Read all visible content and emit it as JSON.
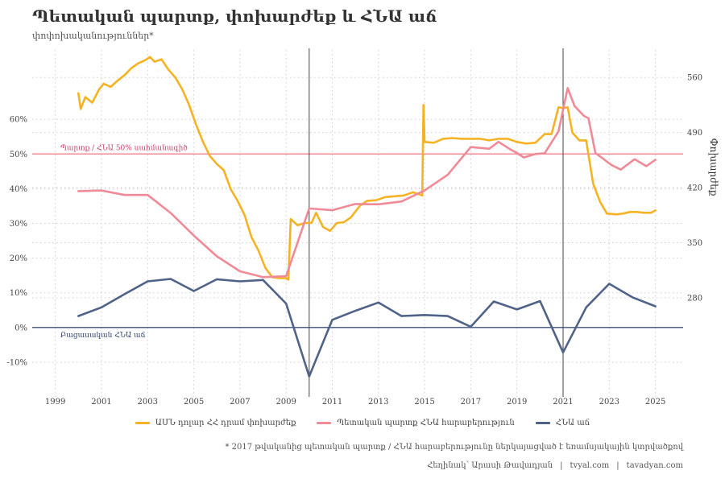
{
  "chart_data": {
    "type": "line",
    "title": "Պետական պարտք, փոխարժեք և ՀՆԱ աճ",
    "subtitle": "փոփոխականություններ*",
    "x_ticks": [
      1999,
      2001,
      2003,
      2005,
      2007,
      2009,
      2011,
      2013,
      2015,
      2017,
      2019,
      2021,
      2023,
      2025
    ],
    "xlim": [
      1998,
      2026.2
    ],
    "y_left": {
      "ticks": [
        "-10%",
        "0%",
        "10%",
        "20%",
        "30%",
        "40%",
        "50%",
        "60%"
      ],
      "range": [
        -20,
        80
      ]
    },
    "y_right": {
      "label": "Փոխարժեք",
      "ticks": [
        "280",
        "350",
        "420",
        "490",
        "560"
      ],
      "values": [
        280,
        350,
        420,
        490,
        560
      ],
      "range": [
        154,
        595
      ]
    },
    "reference_lines": [
      {
        "value": 50,
        "label": "Պարտք / ՀՆԱ 50% սահմանագիծ",
        "color": "#f08a96"
      },
      {
        "value": 0,
        "label": "Բացասական ՀՆԱ աճ",
        "color": "#3d4f7c"
      }
    ],
    "vertical_lines": [
      2010,
      2021
    ],
    "series": [
      {
        "name": "ԱՄՆ դոլար ՀՀ դրամ փոխարժեք",
        "axis": "right",
        "color": "#f5b324",
        "points": [
          [
            2000.0,
            540
          ],
          [
            2000.1,
            520
          ],
          [
            2000.3,
            535
          ],
          [
            2000.6,
            528
          ],
          [
            2000.9,
            545
          ],
          [
            2001.1,
            552
          ],
          [
            2001.4,
            548
          ],
          [
            2001.7,
            556
          ],
          [
            2002.0,
            563
          ],
          [
            2002.3,
            572
          ],
          [
            2002.6,
            578
          ],
          [
            2002.9,
            582
          ],
          [
            2003.1,
            586
          ],
          [
            2003.3,
            580
          ],
          [
            2003.6,
            583
          ],
          [
            2003.9,
            570
          ],
          [
            2004.2,
            560
          ],
          [
            2004.5,
            545
          ],
          [
            2004.8,
            525
          ],
          [
            2005.1,
            500
          ],
          [
            2005.4,
            478
          ],
          [
            2005.7,
            460
          ],
          [
            2006.0,
            450
          ],
          [
            2006.3,
            442
          ],
          [
            2006.6,
            418
          ],
          [
            2006.9,
            403
          ],
          [
            2007.2,
            385
          ],
          [
            2007.5,
            357
          ],
          [
            2007.8,
            340
          ],
          [
            2008.1,
            318
          ],
          [
            2008.4,
            306
          ],
          [
            2008.7,
            305
          ],
          [
            2009.0,
            305
          ],
          [
            2009.1,
            303
          ],
          [
            2009.2,
            380
          ],
          [
            2009.5,
            372
          ],
          [
            2009.8,
            375
          ],
          [
            2010.1,
            375
          ],
          [
            2010.3,
            388
          ],
          [
            2010.6,
            370
          ],
          [
            2010.9,
            365
          ],
          [
            2011.2,
            375
          ],
          [
            2011.5,
            376
          ],
          [
            2011.8,
            382
          ],
          [
            2012.2,
            397
          ],
          [
            2012.5,
            403
          ],
          [
            2012.9,
            404
          ],
          [
            2013.3,
            408
          ],
          [
            2013.7,
            409
          ],
          [
            2014.1,
            410
          ],
          [
            2014.5,
            414
          ],
          [
            2014.9,
            410
          ],
          [
            2014.95,
            525
          ],
          [
            2015.0,
            478
          ],
          [
            2015.4,
            477
          ],
          [
            2015.8,
            482
          ],
          [
            2016.2,
            483
          ],
          [
            2016.6,
            482
          ],
          [
            2017.0,
            482
          ],
          [
            2017.4,
            482
          ],
          [
            2017.8,
            480
          ],
          [
            2018.2,
            482
          ],
          [
            2018.6,
            482
          ],
          [
            2019.0,
            478
          ],
          [
            2019.4,
            476
          ],
          [
            2019.8,
            477
          ],
          [
            2020.2,
            488
          ],
          [
            2020.5,
            488
          ],
          [
            2020.8,
            522
          ],
          [
            2021.0,
            521
          ],
          [
            2021.2,
            522
          ],
          [
            2021.4,
            490
          ],
          [
            2021.7,
            480
          ],
          [
            2022.0,
            480
          ],
          [
            2022.3,
            425
          ],
          [
            2022.6,
            402
          ],
          [
            2022.9,
            387
          ],
          [
            2023.3,
            386
          ],
          [
            2023.6,
            387
          ],
          [
            2023.9,
            389
          ],
          [
            2024.2,
            389
          ],
          [
            2024.5,
            388
          ],
          [
            2024.8,
            388
          ],
          [
            2025.0,
            391
          ]
        ]
      },
      {
        "name": "Պետական պարտք ՀՆԱ հարաբերություն",
        "axis": "left",
        "color": "#f08a96",
        "points": [
          [
            2000,
            39.3
          ],
          [
            2001,
            39.5
          ],
          [
            2002,
            38.2
          ],
          [
            2003,
            38.2
          ],
          [
            2004,
            33.0
          ],
          [
            2005,
            26.5
          ],
          [
            2006,
            20.5
          ],
          [
            2007,
            16.2
          ],
          [
            2008,
            14.5
          ],
          [
            2009,
            14.8
          ],
          [
            2010,
            34.3
          ],
          [
            2011,
            33.8
          ],
          [
            2012,
            35.6
          ],
          [
            2013,
            35.5
          ],
          [
            2014,
            36.3
          ],
          [
            2015,
            39.5
          ],
          [
            2016,
            44.0
          ],
          [
            2017,
            52.0
          ],
          [
            2017.8,
            51.5
          ],
          [
            2018.2,
            53.5
          ],
          [
            2018.7,
            51.4
          ],
          [
            2019.0,
            50.3
          ],
          [
            2019.3,
            49.0
          ],
          [
            2019.8,
            50.0
          ],
          [
            2020.2,
            50.2
          ],
          [
            2020.8,
            56.5
          ],
          [
            2021.2,
            69.0
          ],
          [
            2021.5,
            63.8
          ],
          [
            2021.9,
            61.0
          ],
          [
            2022.1,
            60.3
          ],
          [
            2022.4,
            50.3
          ],
          [
            2022.8,
            48.3
          ],
          [
            2023.1,
            46.8
          ],
          [
            2023.5,
            45.5
          ],
          [
            2023.8,
            47.0
          ],
          [
            2024.1,
            48.5
          ],
          [
            2024.6,
            46.5
          ],
          [
            2025.0,
            48.3
          ]
        ]
      },
      {
        "name": "ՀՆԱ աճ",
        "axis": "left",
        "color": "#4f6389",
        "points": [
          [
            2000,
            3.3
          ],
          [
            2001,
            5.8
          ],
          [
            2002,
            9.6
          ],
          [
            2003,
            13.3
          ],
          [
            2004,
            14.0
          ],
          [
            2005,
            10.5
          ],
          [
            2006,
            13.9
          ],
          [
            2007,
            13.3
          ],
          [
            2008,
            13.7
          ],
          [
            2009,
            6.9
          ],
          [
            2010,
            -14.1
          ],
          [
            2011,
            2.2
          ],
          [
            2012,
            4.8
          ],
          [
            2013,
            7.2
          ],
          [
            2014,
            3.3
          ],
          [
            2015,
            3.6
          ],
          [
            2016,
            3.3
          ],
          [
            2017,
            0.2
          ],
          [
            2018,
            7.5
          ],
          [
            2019,
            5.2
          ],
          [
            2020,
            7.6
          ],
          [
            2021,
            -7.2
          ],
          [
            2022,
            5.8
          ],
          [
            2023,
            12.6
          ],
          [
            2024,
            8.7
          ],
          [
            2025,
            6.1
          ]
        ]
      }
    ]
  },
  "footer": {
    "note": "* 2017 թվականից պետական պարտք / ՀՆԱ հարաբերությունը ներկայացված է եռամսյակային կտրվածքով",
    "author": "Հեղինակ՝ Արասի Թավադյան",
    "sites": [
      "tvyal.com",
      "tavadyan.com"
    ]
  }
}
